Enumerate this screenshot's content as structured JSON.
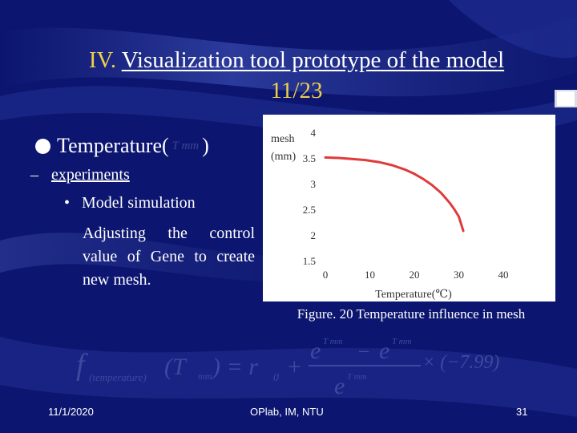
{
  "slide": {
    "title_num": "IV.",
    "title_text": "Visualization tool prototype of the model",
    "title_page": "11/23",
    "bullet": "Temperature(",
    "bullet_close": ")",
    "dash": "–",
    "sub_label": "experiments",
    "dot_label": "Model simulation",
    "para": "Adjusting the control value of Gene to create new mesh.",
    "caption": "Figure. 20 Temperature influence in mesh",
    "footer_date": "11/1/2020",
    "footer_center": "OPlab, IM, NTU",
    "footer_page": "31"
  },
  "colors": {
    "background": "#0c1670",
    "title_accent": "#f0d04a",
    "curve": "#e03a3a"
  },
  "chart_data": {
    "type": "line",
    "ylabel": "mesh\n(mm)",
    "xlabel": "Temperature(℃)",
    "xlim": [
      0,
      40
    ],
    "ylim": [
      1.5,
      4
    ],
    "xticks": [
      "0",
      "10",
      "20",
      "30",
      "40"
    ],
    "yticks": [
      "1.5",
      "2",
      "2.5",
      "3",
      "3.5",
      "4"
    ],
    "series": [
      {
        "x": [
          0,
          3,
          6,
          9,
          12,
          15,
          18,
          20,
          22,
          24,
          26,
          27,
          28,
          29,
          30,
          31
        ],
        "y": [
          3.51,
          3.5,
          3.48,
          3.46,
          3.42,
          3.36,
          3.27,
          3.19,
          3.09,
          2.97,
          2.82,
          2.72,
          2.62,
          2.5,
          2.36,
          2.08
        ]
      }
    ]
  },
  "formula": {
    "lhs_f": "f",
    "lhs_sub": "(temperature)",
    "lhs_arg": "(T",
    "lhs_arg_sub": "mm",
    "eq": ") = r",
    "r_sub": "0",
    "plus": "+",
    "num_e1": "e",
    "num_sup1": "T mm",
    "minus": "−",
    "num_e2": "e",
    "num_sup2": "T mm",
    "den_e": "e",
    "den_sup": "T mm",
    "times": "× (−7.99)"
  }
}
